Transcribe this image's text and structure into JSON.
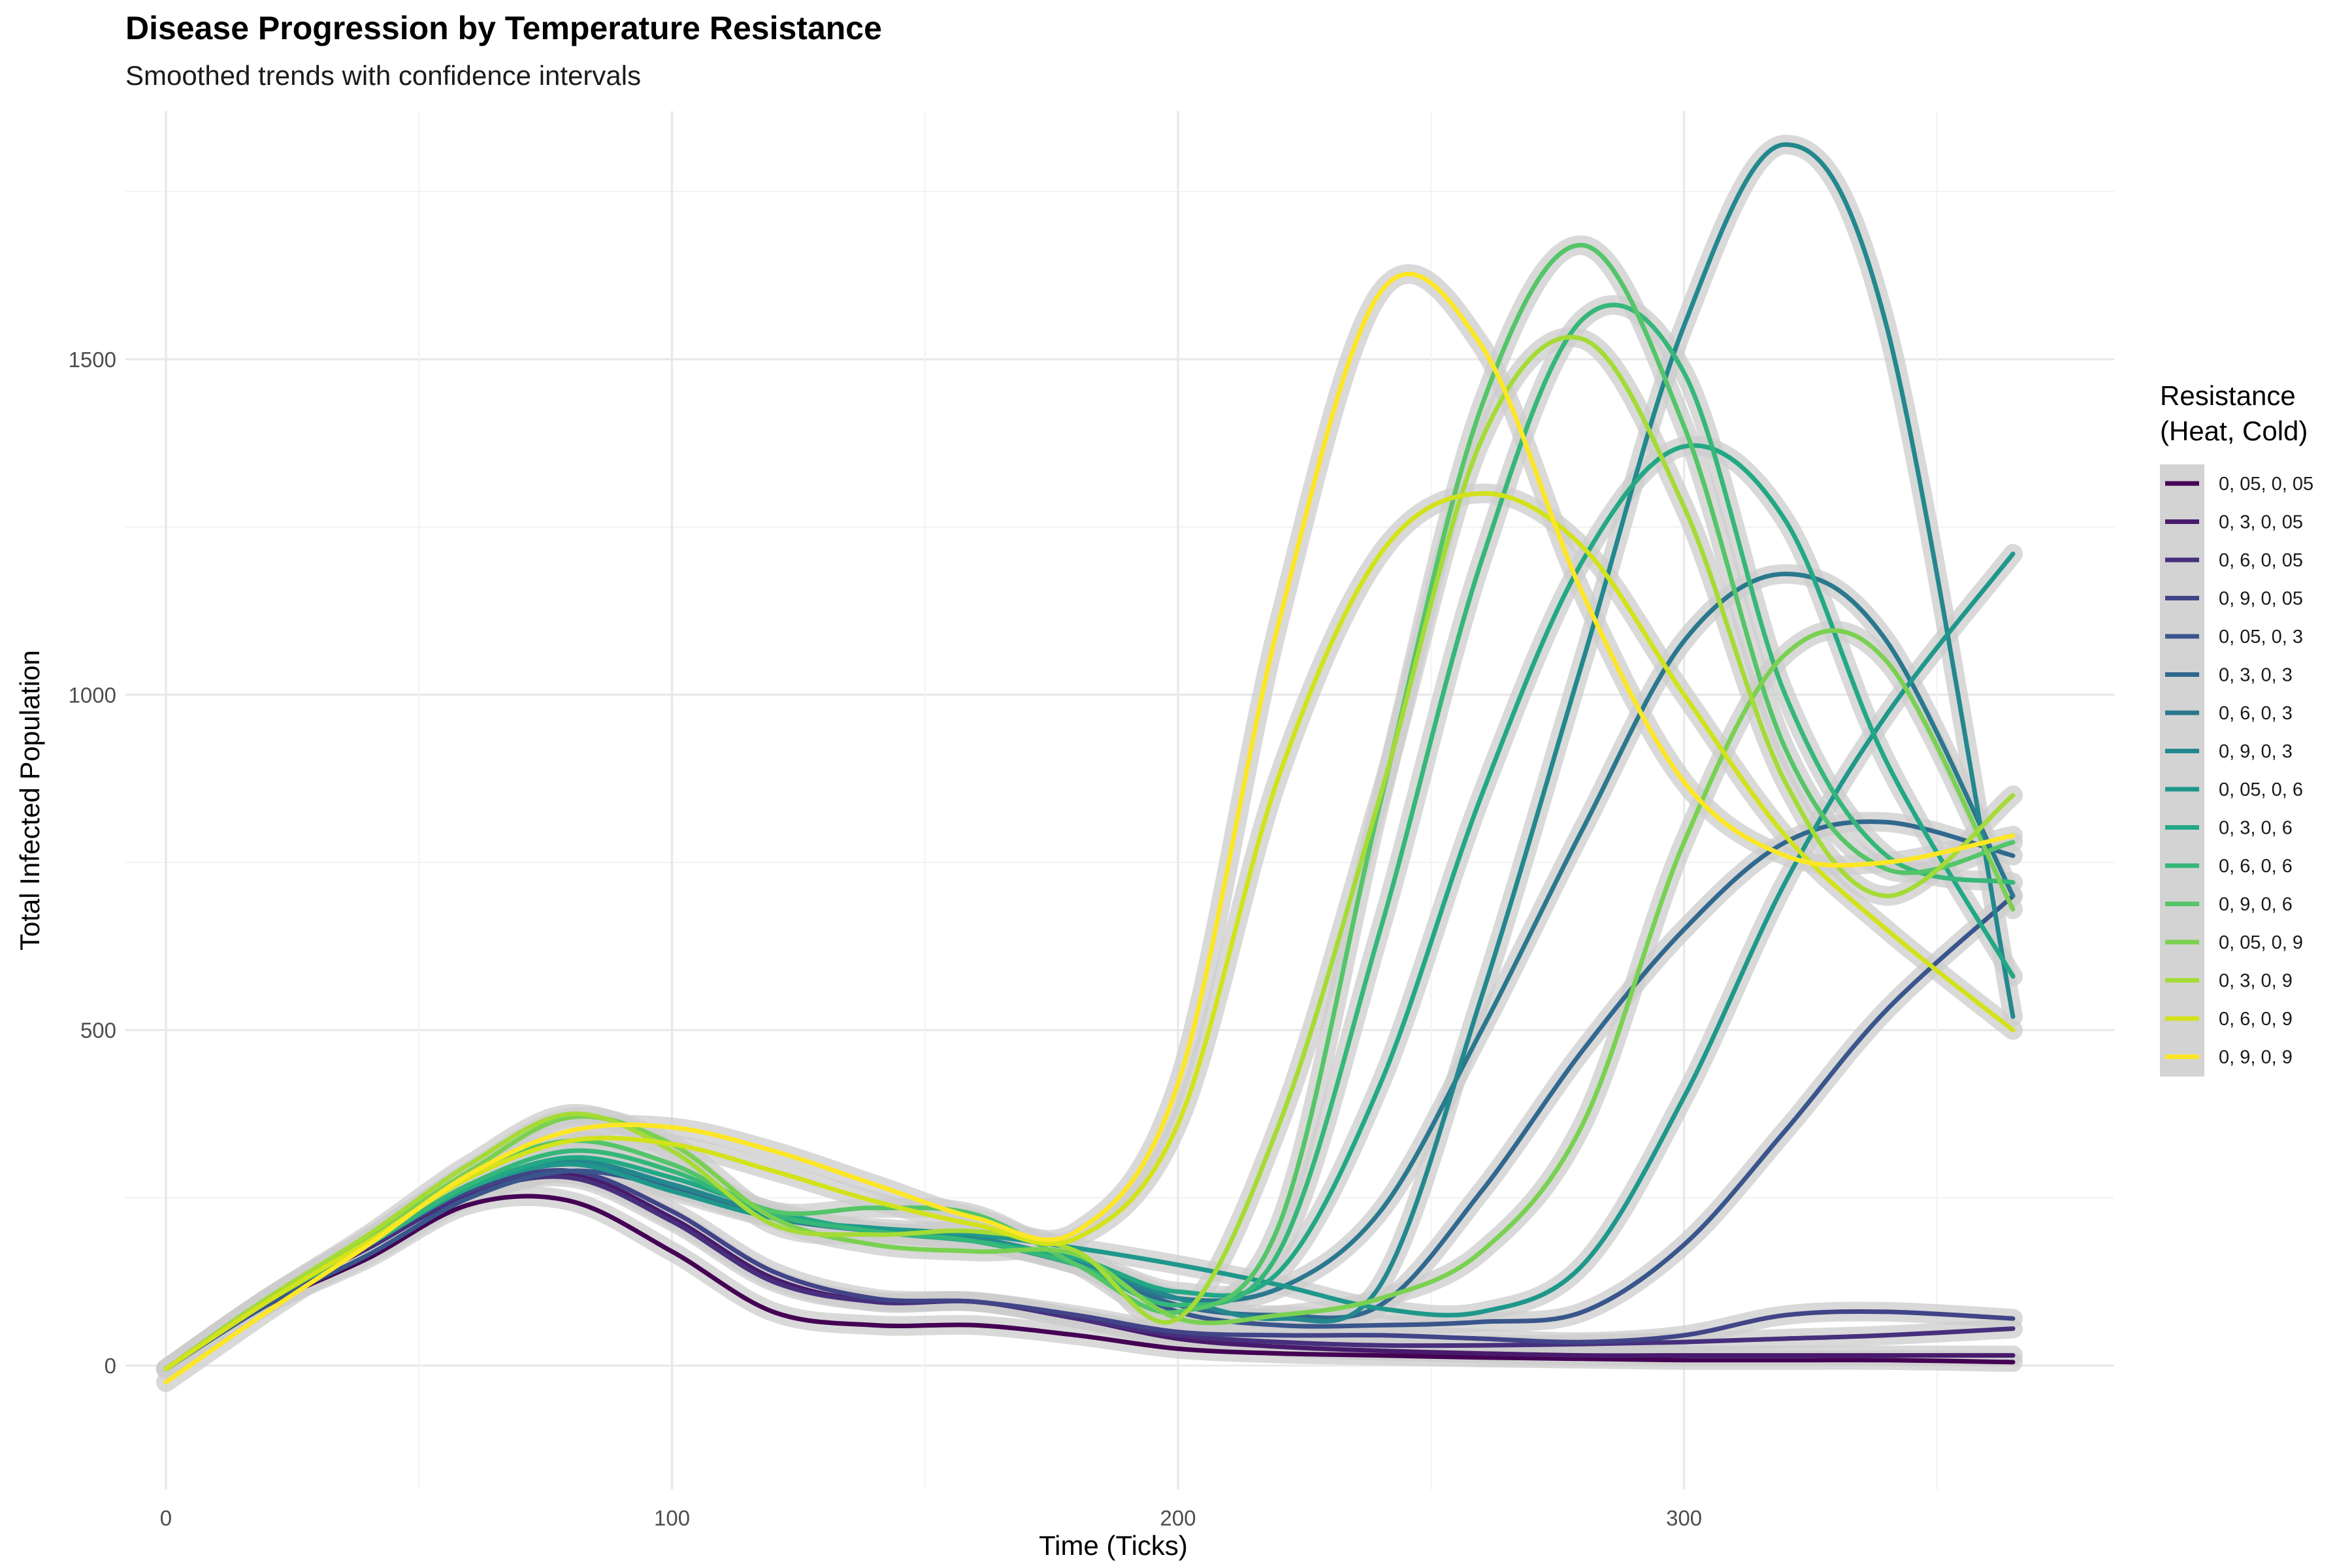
{
  "chart_data": {
    "type": "line",
    "title": "Disease Progression by Temperature Resistance",
    "subtitle": "Smoothed trends with confidence intervals",
    "xlabel": "Time (Ticks)",
    "ylabel": "Total Infected Population",
    "xlim": [
      -8,
      385
    ],
    "ylim": [
      -185,
      1870
    ],
    "x_ticks": [
      0,
      100,
      200,
      300
    ],
    "y_ticks": [
      0,
      500,
      1000,
      1500
    ],
    "grid": true,
    "confidence_band_color": "#cccccc",
    "legend": {
      "title_line1": "Resistance",
      "title_line2": "(Heat, Cold)",
      "position": "right"
    },
    "x": [
      0,
      20,
      40,
      60,
      80,
      100,
      120,
      140,
      160,
      180,
      200,
      220,
      240,
      260,
      280,
      300,
      320,
      340,
      365
    ],
    "series": [
      {
        "name": "0, 05, 0, 05",
        "color": "#440154",
        "values": [
          -5,
          90,
          160,
          240,
          245,
          170,
          80,
          60,
          60,
          45,
          25,
          18,
          15,
          12,
          10,
          8,
          8,
          8,
          5
        ]
      },
      {
        "name": "0, 3, 0, 05",
        "color": "#481A6C",
        "values": [
          -5,
          95,
          175,
          255,
          285,
          220,
          130,
          95,
          95,
          70,
          40,
          28,
          22,
          18,
          15,
          15,
          15,
          15,
          15
        ]
      },
      {
        "name": "0, 6, 0, 05",
        "color": "#472F7D",
        "values": [
          -5,
          95,
          175,
          255,
          280,
          215,
          125,
          95,
          95,
          70,
          45,
          35,
          30,
          30,
          32,
          35,
          40,
          45,
          55
        ]
      },
      {
        "name": "0, 9, 0, 05",
        "color": "#414487",
        "values": [
          -5,
          95,
          180,
          260,
          290,
          230,
          140,
          100,
          95,
          75,
          50,
          45,
          45,
          40,
          35,
          45,
          75,
          80,
          70
        ]
      },
      {
        "name": "0, 05, 0, 3",
        "color": "#39568C",
        "values": [
          -5,
          90,
          165,
          250,
          290,
          265,
          225,
          200,
          185,
          150,
          80,
          60,
          60,
          65,
          80,
          180,
          350,
          530,
          700
        ]
      },
      {
        "name": "0, 3, 0, 3",
        "color": "#31688E",
        "values": [
          -5,
          95,
          180,
          265,
          300,
          265,
          220,
          200,
          185,
          150,
          90,
          75,
          90,
          260,
          470,
          650,
          780,
          810,
          760
        ]
      },
      {
        "name": "0, 6, 0, 3",
        "color": "#2A788E",
        "values": [
          -5,
          95,
          180,
          265,
          305,
          270,
          225,
          200,
          185,
          150,
          100,
          115,
          230,
          500,
          800,
          1080,
          1180,
          1080,
          700
        ]
      },
      {
        "name": "0, 9, 0, 3",
        "color": "#23888E",
        "values": [
          -5,
          95,
          180,
          265,
          305,
          270,
          225,
          200,
          190,
          155,
          100,
          70,
          120,
          550,
          1050,
          1550,
          1820,
          1550,
          520
        ]
      },
      {
        "name": "0, 05, 0, 6",
        "color": "#1F988B",
        "values": [
          -5,
          95,
          180,
          265,
          300,
          260,
          220,
          205,
          195,
          175,
          150,
          120,
          85,
          80,
          150,
          400,
          720,
          970,
          1210
        ]
      },
      {
        "name": "0, 3, 0, 6",
        "color": "#22A884",
        "values": [
          -5,
          95,
          180,
          265,
          310,
          280,
          230,
          200,
          185,
          160,
          110,
          140,
          420,
          850,
          1200,
          1370,
          1260,
          900,
          580
        ]
      },
      {
        "name": "0, 6, 0, 6",
        "color": "#35B779",
        "values": [
          -5,
          95,
          180,
          270,
          320,
          290,
          225,
          200,
          185,
          150,
          90,
          170,
          650,
          1200,
          1560,
          1480,
          1000,
          760,
          720
        ]
      },
      {
        "name": "0, 9, 0, 6",
        "color": "#54C568",
        "values": [
          -5,
          100,
          190,
          285,
          335,
          300,
          230,
          235,
          225,
          150,
          80,
          210,
          840,
          1430,
          1670,
          1400,
          920,
          740,
          780
        ]
      },
      {
        "name": "0, 05, 0, 9",
        "color": "#7AD151",
        "values": [
          -5,
          100,
          190,
          290,
          370,
          330,
          220,
          180,
          170,
          165,
          70,
          75,
          100,
          170,
          360,
          780,
          1060,
          1050,
          680
        ]
      },
      {
        "name": "0, 3, 0, 9",
        "color": "#A5DB36",
        "values": [
          -5,
          100,
          195,
          300,
          375,
          320,
          210,
          195,
          200,
          170,
          70,
          360,
          850,
          1380,
          1530,
          1280,
          870,
          700,
          850
        ]
      },
      {
        "name": "0, 6, 0, 9",
        "color": "#D2E21B",
        "values": [
          -5,
          95,
          185,
          280,
          335,
          330,
          290,
          245,
          210,
          190,
          360,
          880,
          1210,
          1300,
          1220,
          1000,
          790,
          650,
          500
        ]
      },
      {
        "name": "0, 9, 0, 9",
        "color": "#FDE725",
        "values": [
          -25,
          80,
          180,
          285,
          350,
          355,
          320,
          270,
          220,
          200,
          420,
          1110,
          1600,
          1520,
          1150,
          870,
          760,
          750,
          790
        ]
      }
    ]
  }
}
